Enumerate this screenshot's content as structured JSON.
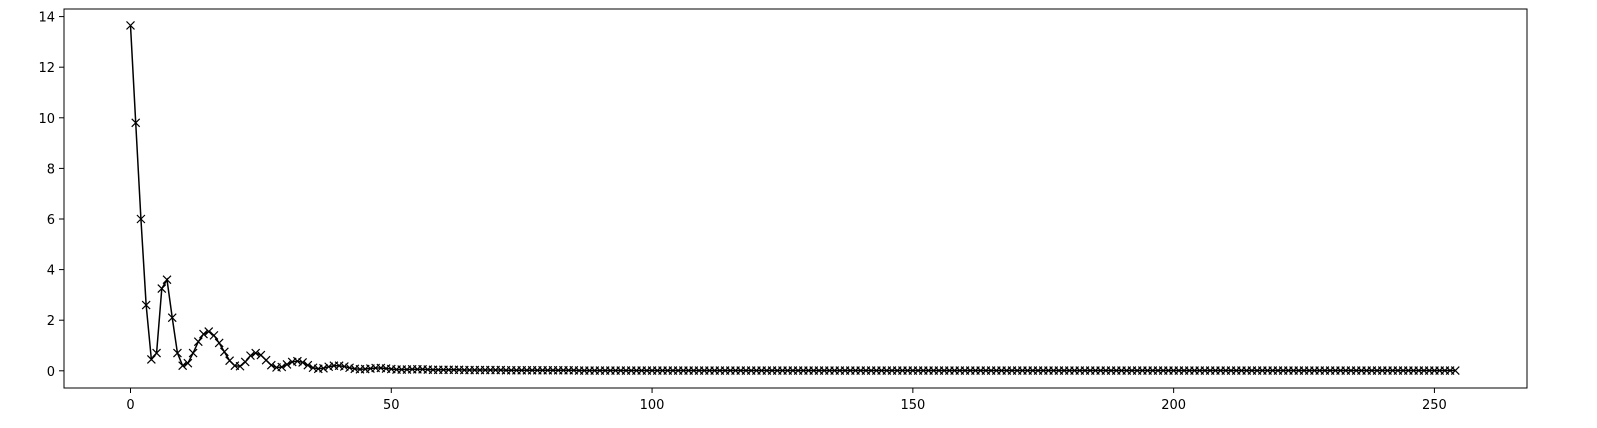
{
  "chart_data": {
    "type": "line",
    "title": "",
    "xlabel": "",
    "ylabel": "",
    "xlim": [
      -12.75,
      267.75
    ],
    "ylim": [
      -0.68,
      14.3
    ],
    "xticks": [
      0,
      50,
      100,
      150,
      200,
      250
    ],
    "yticks": [
      0,
      2,
      4,
      6,
      8,
      10,
      12,
      14
    ],
    "grid": false,
    "legend": "none",
    "series": [
      {
        "color": "#000000",
        "marker": "x",
        "x_start": 0,
        "x_step": 1,
        "values": [
          13.65,
          9.8,
          6.0,
          2.6,
          0.45,
          0.7,
          3.25,
          3.6,
          2.1,
          0.7,
          0.2,
          0.3,
          0.7,
          1.15,
          1.45,
          1.55,
          1.4,
          1.1,
          0.75,
          0.4,
          0.2,
          0.18,
          0.35,
          0.6,
          0.7,
          0.62,
          0.42,
          0.22,
          0.13,
          0.15,
          0.25,
          0.35,
          0.38,
          0.33,
          0.22,
          0.12,
          0.08,
          0.1,
          0.16,
          0.2,
          0.2,
          0.17,
          0.12,
          0.08,
          0.06,
          0.07,
          0.09,
          0.11,
          0.11,
          0.09,
          0.07,
          0.05,
          0.05,
          0.05,
          0.06,
          0.06,
          0.06,
          0.05,
          0.04,
          0.04,
          0.04,
          0.04,
          0.04,
          0.04,
          0.03,
          0.03,
          0.03,
          0.03,
          0.03,
          0.03,
          0.03,
          0.03,
          0.02,
          0.02,
          0.02,
          0.02,
          0.02,
          0.02,
          0.02,
          0.02,
          0.02,
          0.02,
          0.02,
          0.02,
          0.02,
          0.02,
          0.01,
          0.01,
          0.01,
          0.01,
          0.01,
          0.01,
          0.01,
          0.01,
          0.01,
          0.01,
          0.01,
          0.01,
          0.01,
          0.01,
          0.01,
          0.01,
          0.01,
          0.01,
          0.01,
          0.01,
          0.01,
          0.01,
          0.01,
          0.01,
          0.01,
          0.01,
          0.01,
          0.01,
          0.01,
          0.01,
          0.01,
          0.01,
          0.01,
          0.01,
          0.01,
          0.01,
          0.01,
          0.01,
          0.01,
          0.01,
          0.01,
          0.01,
          0.01,
          0.01,
          0.01,
          0.01,
          0.01,
          0.01,
          0.01,
          0.01,
          0.01,
          0.01,
          0.01,
          0.01,
          0.01,
          0.01,
          0.01,
          0.01,
          0.01,
          0.01,
          0.01,
          0.01,
          0.01,
          0.01,
          0.01,
          0.01,
          0.01,
          0.01,
          0.01,
          0.01,
          0.01,
          0.01,
          0.01,
          0.01,
          0.01,
          0.01,
          0.01,
          0.01,
          0.01,
          0.01,
          0.01,
          0.01,
          0.01,
          0.01,
          0.01,
          0.01,
          0.01,
          0.01,
          0.01,
          0.01,
          0.01,
          0.01,
          0.01,
          0.01,
          0.01,
          0.01,
          0.01,
          0.01,
          0.01,
          0.01,
          0.01,
          0.01,
          0.01,
          0.01,
          0.01,
          0.01,
          0.01,
          0.01,
          0.01,
          0.01,
          0.01,
          0.01,
          0.01,
          0.01,
          0.01,
          0.01,
          0.01,
          0.01,
          0.01,
          0.01,
          0.01,
          0.01,
          0.01,
          0.01,
          0.01,
          0.01,
          0.01,
          0.01,
          0.01,
          0.01,
          0.01,
          0.01,
          0.01,
          0.01,
          0.01,
          0.01,
          0.01,
          0.01,
          0.01,
          0.01,
          0.01,
          0.01,
          0.01,
          0.01,
          0.01,
          0.01,
          0.01,
          0.01,
          0.01,
          0.01,
          0.01,
          0.01,
          0.01,
          0.01,
          0.01,
          0.01,
          0.01,
          0.01,
          0.01,
          0.01,
          0.01,
          0.01,
          0.01,
          0.01,
          0.01,
          0.01,
          0.01,
          0.01,
          0.01
        ]
      }
    ]
  }
}
